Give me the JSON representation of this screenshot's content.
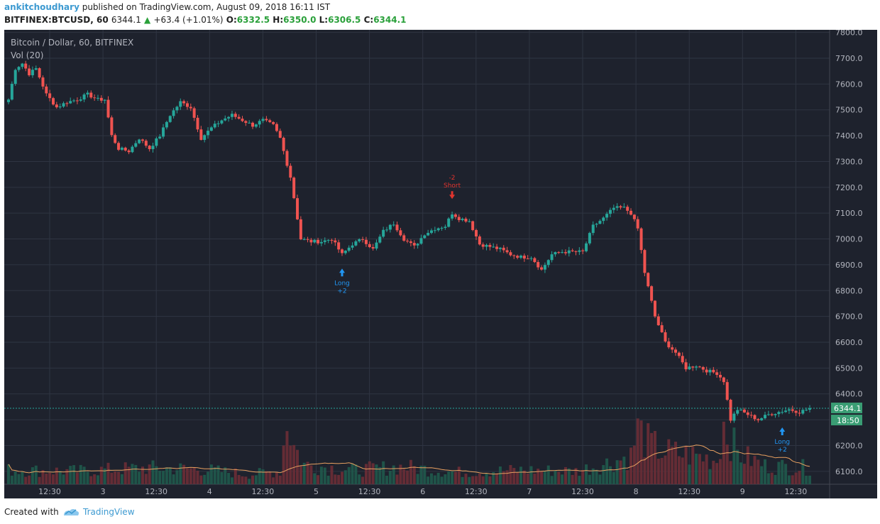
{
  "header": {
    "author": "ankitchoudhary",
    "published_text": " published on TradingView.com, August 09, 2018 16:11 IST",
    "symbol_interval": "BITFINEX:BTCUSD, 60",
    "last_price": "6344.1",
    "change_arrow": "▲",
    "change": "+63.4 (+1.01%)",
    "o_label": "O:",
    "o_value": "6332.5",
    "h_label": "H:",
    "h_value": "6350.0",
    "l_label": "L:",
    "l_value": "6306.5",
    "c_label": "C:",
    "c_value": "6344.1"
  },
  "chart_title": "Bitcoin / Dollar, 60, BITFINEX",
  "volume_label": "Vol (20)",
  "price_badge": "6344.1",
  "countdown_badge": "18:50",
  "footer": {
    "created_with": "Created with",
    "brand": "TradingView"
  },
  "colors": {
    "up": "#26a69a",
    "down": "#ef5350",
    "background": "#1e222d",
    "grid": "#2f3542",
    "axis_text": "#b2b5be",
    "volume_ma": "#e8a060",
    "long_marker": "#2196f3",
    "short_marker": "#e0342e"
  },
  "chart_data": {
    "type": "candlestick",
    "y_axis": {
      "ticks": [
        "7800.0",
        "7700.0",
        "7600.0",
        "7500.0",
        "7400.0",
        "7300.0",
        "7200.0",
        "7100.0",
        "7000.0",
        "6900.0",
        "6800.0",
        "6700.0",
        "6600.0",
        "6500.0",
        "6400.0",
        "6300.0",
        "6200.0",
        "6100.0"
      ],
      "range": [
        6050,
        7810
      ]
    },
    "x_axis": {
      "ticks": [
        "12:30",
        "3",
        "12:30",
        "4",
        "12:30",
        "5",
        "12:30",
        "6",
        "12:30",
        "7",
        "12:30",
        "8",
        "12:30",
        "9",
        "12:30"
      ]
    },
    "price_anchors": [
      [
        0,
        7540
      ],
      [
        2,
        7660
      ],
      [
        4,
        7680
      ],
      [
        6,
        7640
      ],
      [
        8,
        7660
      ],
      [
        11,
        7560
      ],
      [
        14,
        7510
      ],
      [
        17,
        7530
      ],
      [
        20,
        7540
      ],
      [
        23,
        7560
      ],
      [
        26,
        7540
      ],
      [
        28,
        7540
      ],
      [
        30,
        7400
      ],
      [
        32,
        7350
      ],
      [
        35,
        7340
      ],
      [
        38,
        7390
      ],
      [
        41,
        7350
      ],
      [
        44,
        7400
      ],
      [
        47,
        7480
      ],
      [
        50,
        7530
      ],
      [
        53,
        7510
      ],
      [
        56,
        7390
      ],
      [
        59,
        7430
      ],
      [
        62,
        7460
      ],
      [
        65,
        7480
      ],
      [
        68,
        7460
      ],
      [
        71,
        7440
      ],
      [
        74,
        7460
      ],
      [
        77,
        7440
      ],
      [
        79,
        7390
      ],
      [
        82,
        7240
      ],
      [
        85,
        7000
      ],
      [
        88,
        6990
      ],
      [
        91,
        6990
      ],
      [
        94,
        7000
      ],
      [
        97,
        6940
      ],
      [
        100,
        6980
      ],
      [
        103,
        7000
      ],
      [
        106,
        6960
      ],
      [
        109,
        7030
      ],
      [
        112,
        7060
      ],
      [
        115,
        7000
      ],
      [
        118,
        6970
      ],
      [
        121,
        7020
      ],
      [
        124,
        7040
      ],
      [
        127,
        7050
      ],
      [
        129,
        7100
      ],
      [
        131,
        7080
      ],
      [
        134,
        7070
      ],
      [
        137,
        6980
      ],
      [
        140,
        6970
      ],
      [
        143,
        6960
      ],
      [
        146,
        6940
      ],
      [
        149,
        6930
      ],
      [
        152,
        6930
      ],
      [
        155,
        6880
      ],
      [
        158,
        6940
      ],
      [
        161,
        6950
      ],
      [
        164,
        6950
      ],
      [
        167,
        6950
      ],
      [
        170,
        7050
      ],
      [
        173,
        7080
      ],
      [
        176,
        7120
      ],
      [
        179,
        7120
      ],
      [
        181,
        7100
      ],
      [
        183,
        7040
      ],
      [
        185,
        6870
      ],
      [
        188,
        6700
      ],
      [
        191,
        6600
      ],
      [
        194,
        6560
      ],
      [
        197,
        6500
      ],
      [
        200,
        6510
      ],
      [
        203,
        6490
      ],
      [
        206,
        6480
      ],
      [
        208,
        6450
      ],
      [
        210,
        6300
      ],
      [
        212,
        6340
      ],
      [
        215,
        6320
      ],
      [
        218,
        6300
      ],
      [
        221,
        6320
      ],
      [
        224,
        6330
      ],
      [
        227,
        6340
      ],
      [
        230,
        6330
      ],
      [
        233,
        6344
      ]
    ],
    "volume_anchors": [
      [
        0,
        130
      ],
      [
        20,
        120
      ],
      [
        40,
        150
      ],
      [
        55,
        140
      ],
      [
        70,
        90
      ],
      [
        79,
        120
      ],
      [
        81,
        600
      ],
      [
        83,
        350
      ],
      [
        86,
        180
      ],
      [
        100,
        130
      ],
      [
        115,
        160
      ],
      [
        130,
        110
      ],
      [
        150,
        130
      ],
      [
        165,
        120
      ],
      [
        175,
        200
      ],
      [
        181,
        260
      ],
      [
        183,
        500
      ],
      [
        186,
        380
      ],
      [
        190,
        300
      ],
      [
        200,
        260
      ],
      [
        206,
        220
      ],
      [
        208,
        560
      ],
      [
        212,
        280
      ],
      [
        220,
        170
      ],
      [
        233,
        150
      ]
    ],
    "volume_range": [
      0,
      700
    ],
    "markers": [
      {
        "type": "long",
        "label": "Long",
        "amount": "+2",
        "index": 97
      },
      {
        "type": "short",
        "label": "Short",
        "amount": "-2",
        "index": 129
      },
      {
        "type": "long",
        "label": "Long",
        "amount": "+2",
        "index": 225
      }
    ],
    "last_price": 6344.1
  }
}
